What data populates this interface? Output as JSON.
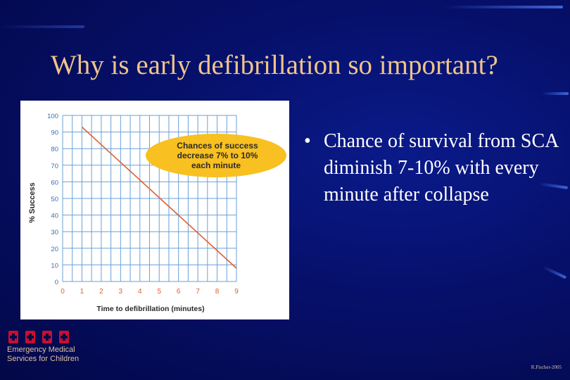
{
  "slide": {
    "title": "Why is early defibrillation so important?",
    "bullets": [
      "Chance of survival from SCA diminish 7-10% with every minute after collapse"
    ]
  },
  "logo": {
    "line1": "Emergency Medical",
    "line2": "Services for Children"
  },
  "footer": {
    "credit": "R.Fischer-2005"
  },
  "colors": {
    "title": "#f0c48a",
    "line": "#e0602e",
    "callout": "#f8c020",
    "grid": "#6aa0d8"
  },
  "chart_data": {
    "type": "line",
    "title": "",
    "xlabel": "Time to defibrillation (minutes)",
    "ylabel": "% Success",
    "xlim": [
      0,
      9
    ],
    "ylim": [
      0,
      100
    ],
    "x_ticks": [
      "0",
      "1",
      "2",
      "3",
      "4",
      "5",
      "6",
      "7",
      "8",
      "9"
    ],
    "y_ticks": [
      "0",
      "10",
      "20",
      "30",
      "40",
      "50",
      "60",
      "70",
      "80",
      "90",
      "100"
    ],
    "grid": true,
    "series": [
      {
        "x": [
          1,
          9
        ],
        "y": [
          93,
          8
        ]
      }
    ],
    "annotation": {
      "line1": "Chances of success",
      "line2": "decrease 7% to 10%",
      "line3": "each minute"
    }
  }
}
